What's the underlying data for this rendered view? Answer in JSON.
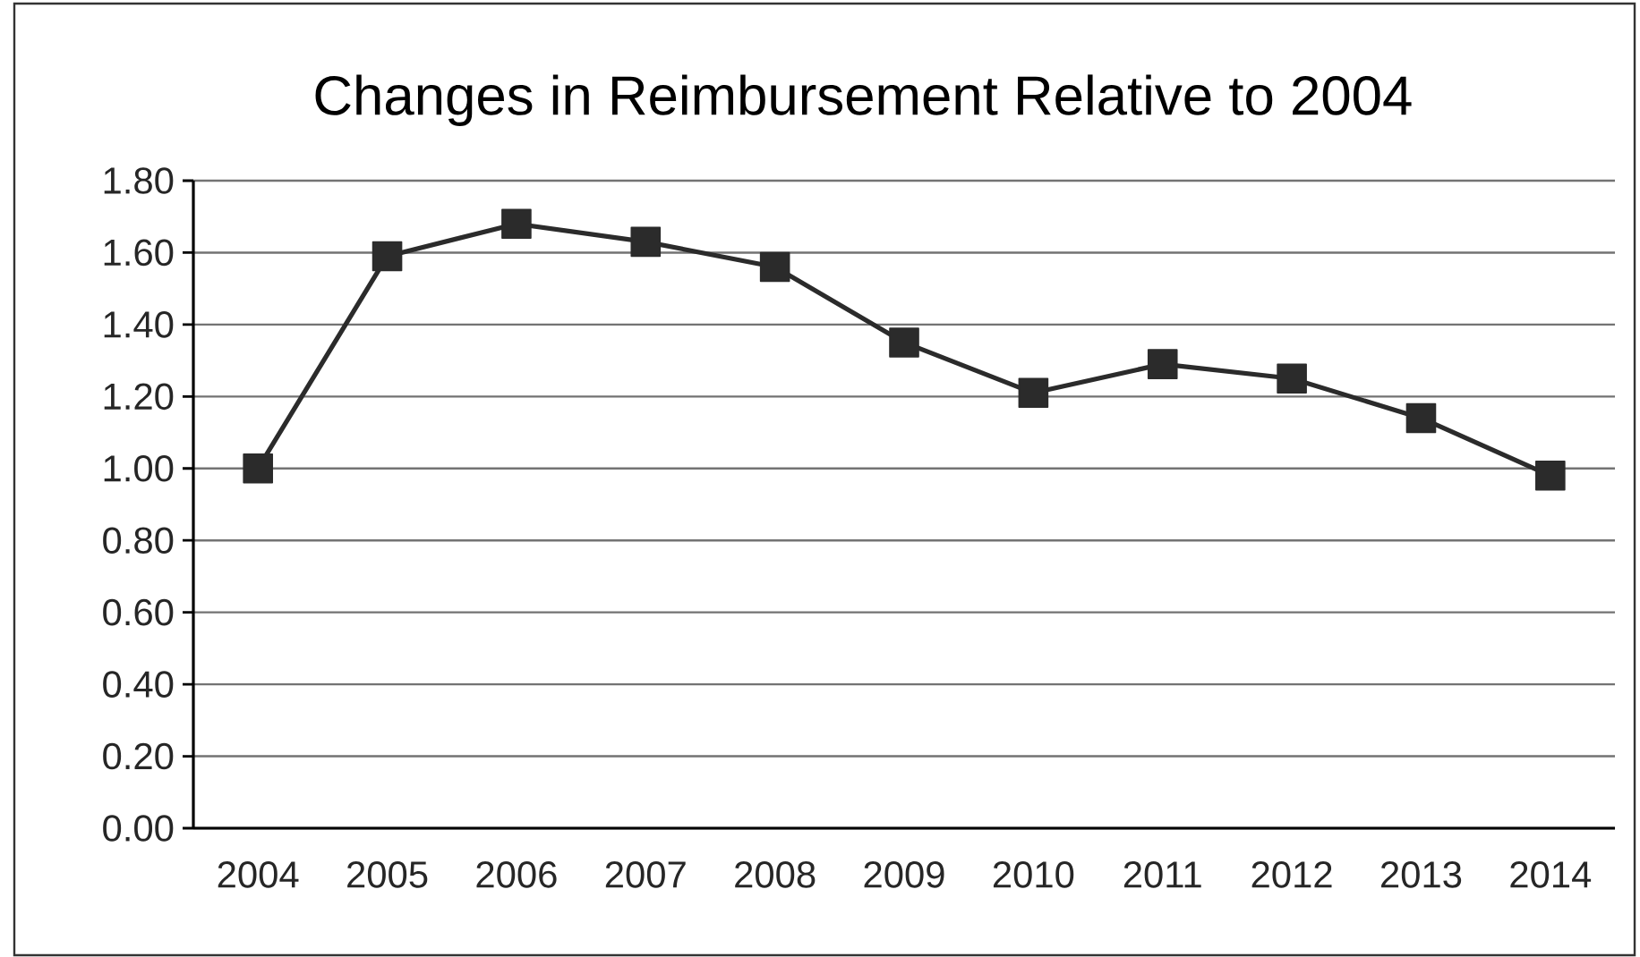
{
  "chart_data": {
    "type": "line",
    "title": "Changes in Reimbursement Relative to 2004",
    "categories": [
      "2004",
      "2005",
      "2006",
      "2007",
      "2008",
      "2009",
      "2010",
      "2011",
      "2012",
      "2013",
      "2014"
    ],
    "series": [
      {
        "color": "#2b2b2b",
        "values": [
          1.0,
          1.59,
          1.68,
          1.63,
          1.56,
          1.35,
          1.21,
          1.29,
          1.25,
          1.14,
          0.98
        ]
      }
    ],
    "ylim": [
      0,
      1.8
    ],
    "yticks": [
      {
        "value": 0,
        "label": "0.00"
      },
      {
        "value": 0.2,
        "label": "0.20"
      },
      {
        "value": 0.4,
        "label": "0.40"
      },
      {
        "value": 0.6,
        "label": "0.60"
      },
      {
        "value": 0.8,
        "label": "0.80"
      },
      {
        "value": 1.0,
        "label": "1.00"
      },
      {
        "value": 1.2,
        "label": "1.20"
      },
      {
        "value": 1.4,
        "label": "1.40"
      },
      {
        "value": 1.6,
        "label": "1.60"
      },
      {
        "value": 1.8,
        "label": "1.80"
      }
    ],
    "grid": "y",
    "marker": "square",
    "line_style": "solid"
  }
}
